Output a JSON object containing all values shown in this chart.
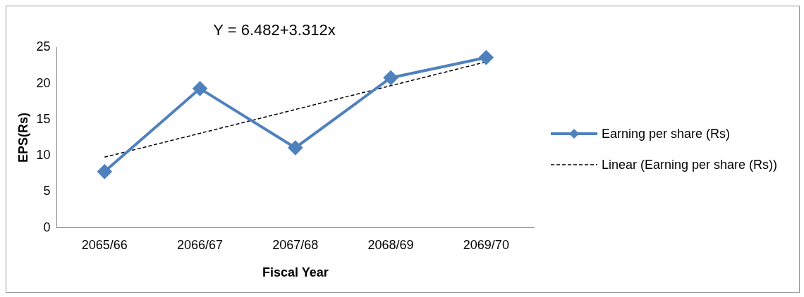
{
  "chart_data": {
    "type": "line",
    "title": "Y = 6.482+3.312x",
    "xlabel": "Fiscal Year",
    "ylabel": "EPS(Rs)",
    "categories": [
      "2065/66",
      "2066/67",
      "2067/68",
      "2068/69",
      "2069/70"
    ],
    "series": [
      {
        "name": "Earning per share (Rs)",
        "color": "#4f81bd",
        "values": [
          7.8,
          19.3,
          11.1,
          20.8,
          23.6
        ],
        "marker": "diamond",
        "line_style": "solid"
      },
      {
        "name": "Linear (Earning per share (Rs))",
        "type": "line",
        "color": "#000000",
        "values": [
          9.8,
          13.1,
          16.4,
          19.7,
          23.0
        ],
        "marker": "none",
        "line_style": "dashed"
      }
    ],
    "ylim": [
      0,
      25
    ],
    "yticks": [
      0,
      5,
      10,
      15,
      20,
      25
    ],
    "grid": false,
    "legend": "right"
  }
}
